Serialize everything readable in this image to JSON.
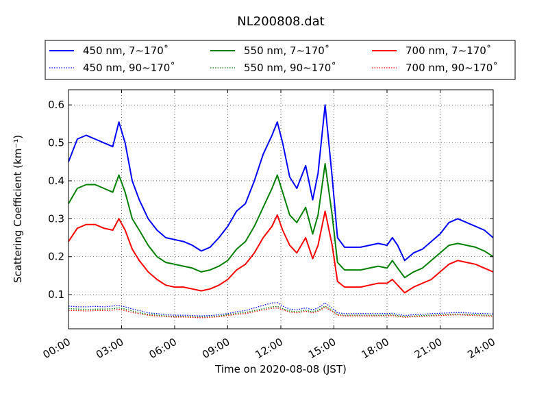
{
  "chart_data": {
    "type": "line",
    "title": "NL200808.dat",
    "xlabel": "Time on 2020-08-08 (JST)",
    "ylabel": "Scattering Coefficient (km⁻¹)",
    "xlim": [
      0,
      24
    ],
    "ylim": [
      0.01,
      0.64
    ],
    "xticks": [
      0,
      3,
      6,
      9,
      12,
      15,
      18,
      21,
      24
    ],
    "xtick_labels": [
      "00:00",
      "03:00",
      "06:00",
      "09:00",
      "12:00",
      "15:00",
      "18:00",
      "21:00",
      "24:00"
    ],
    "yticks": [
      0.1,
      0.2,
      0.3,
      0.4,
      0.5,
      0.6
    ],
    "ytick_labels": [
      "0.1",
      "0.2",
      "0.3",
      "0.4",
      "0.5",
      "0.6"
    ],
    "grid": true,
    "legend_position": "top-outside",
    "x": [
      0,
      0.5,
      1,
      1.5,
      2,
      2.5,
      2.85,
      3.2,
      3.6,
      4,
      4.5,
      5,
      5.5,
      6,
      6.5,
      7,
      7.5,
      8,
      8.5,
      9,
      9.5,
      10,
      10.5,
      11,
      11.5,
      11.8,
      12.1,
      12.5,
      12.9,
      13.4,
      13.8,
      14.1,
      14.5,
      14.9,
      15.2,
      15.6,
      16,
      16.5,
      17,
      17.5,
      18,
      18.3,
      18.6,
      19,
      19.5,
      20,
      20.5,
      21,
      21.5,
      22,
      22.5,
      23,
      23.5,
      24
    ],
    "series": [
      {
        "name": "450 nm, 7∼170˚",
        "color": "#0000ff",
        "style": "solid",
        "values": [
          0.45,
          0.51,
          0.52,
          0.51,
          0.5,
          0.49,
          0.555,
          0.5,
          0.4,
          0.35,
          0.3,
          0.27,
          0.25,
          0.245,
          0.24,
          0.23,
          0.215,
          0.225,
          0.25,
          0.28,
          0.32,
          0.34,
          0.4,
          0.47,
          0.52,
          0.555,
          0.5,
          0.41,
          0.38,
          0.44,
          0.35,
          0.42,
          0.6,
          0.41,
          0.25,
          0.225,
          0.225,
          0.225,
          0.23,
          0.235,
          0.23,
          0.25,
          0.23,
          0.19,
          0.21,
          0.22,
          0.24,
          0.26,
          0.29,
          0.3,
          0.29,
          0.28,
          0.27,
          0.25
        ]
      },
      {
        "name": "550 nm, 7∼170˚",
        "color": "#008000",
        "style": "solid",
        "values": [
          0.34,
          0.38,
          0.39,
          0.39,
          0.38,
          0.37,
          0.415,
          0.37,
          0.3,
          0.27,
          0.23,
          0.2,
          0.185,
          0.18,
          0.175,
          0.17,
          0.16,
          0.165,
          0.175,
          0.19,
          0.22,
          0.24,
          0.28,
          0.33,
          0.38,
          0.415,
          0.37,
          0.31,
          0.29,
          0.33,
          0.26,
          0.31,
          0.445,
          0.31,
          0.185,
          0.165,
          0.165,
          0.165,
          0.17,
          0.175,
          0.17,
          0.19,
          0.17,
          0.145,
          0.16,
          0.17,
          0.19,
          0.21,
          0.23,
          0.235,
          0.23,
          0.225,
          0.215,
          0.2
        ]
      },
      {
        "name": "700 nm, 7∼170˚",
        "color": "#ff0000",
        "style": "solid",
        "values": [
          0.24,
          0.275,
          0.285,
          0.285,
          0.275,
          0.27,
          0.3,
          0.27,
          0.22,
          0.19,
          0.16,
          0.14,
          0.125,
          0.12,
          0.12,
          0.115,
          0.11,
          0.115,
          0.125,
          0.14,
          0.165,
          0.18,
          0.21,
          0.25,
          0.28,
          0.31,
          0.27,
          0.23,
          0.21,
          0.25,
          0.195,
          0.23,
          0.32,
          0.23,
          0.135,
          0.12,
          0.12,
          0.12,
          0.125,
          0.13,
          0.13,
          0.14,
          0.125,
          0.105,
          0.12,
          0.13,
          0.14,
          0.16,
          0.18,
          0.19,
          0.185,
          0.18,
          0.17,
          0.16
        ]
      },
      {
        "name": "450 nm, 90∼170˚",
        "color": "#0000ff",
        "style": "dotted",
        "values": [
          0.07,
          0.068,
          0.068,
          0.069,
          0.068,
          0.07,
          0.072,
          0.068,
          0.062,
          0.058,
          0.052,
          0.05,
          0.047,
          0.046,
          0.046,
          0.045,
          0.044,
          0.045,
          0.047,
          0.05,
          0.055,
          0.058,
          0.065,
          0.072,
          0.078,
          0.079,
          0.07,
          0.062,
          0.06,
          0.065,
          0.06,
          0.065,
          0.078,
          0.065,
          0.052,
          0.05,
          0.05,
          0.05,
          0.05,
          0.05,
          0.05,
          0.051,
          0.048,
          0.045,
          0.047,
          0.048,
          0.05,
          0.051,
          0.052,
          0.053,
          0.052,
          0.051,
          0.05,
          0.049
        ]
      },
      {
        "name": "550 nm, 90∼170˚",
        "color": "#008000",
        "style": "dotted",
        "values": [
          0.063,
          0.062,
          0.061,
          0.062,
          0.062,
          0.063,
          0.065,
          0.062,
          0.057,
          0.053,
          0.048,
          0.046,
          0.044,
          0.043,
          0.043,
          0.042,
          0.041,
          0.042,
          0.044,
          0.047,
          0.051,
          0.053,
          0.058,
          0.063,
          0.068,
          0.069,
          0.063,
          0.057,
          0.055,
          0.059,
          0.055,
          0.059,
          0.07,
          0.059,
          0.048,
          0.046,
          0.046,
          0.046,
          0.046,
          0.046,
          0.046,
          0.047,
          0.045,
          0.042,
          0.044,
          0.045,
          0.046,
          0.047,
          0.048,
          0.049,
          0.048,
          0.047,
          0.046,
          0.045
        ]
      },
      {
        "name": "700 nm, 90∼170˚",
        "color": "#ff0000",
        "style": "dotted",
        "values": [
          0.058,
          0.058,
          0.057,
          0.058,
          0.058,
          0.059,
          0.061,
          0.058,
          0.053,
          0.05,
          0.046,
          0.044,
          0.042,
          0.041,
          0.041,
          0.04,
          0.039,
          0.04,
          0.042,
          0.045,
          0.048,
          0.05,
          0.055,
          0.06,
          0.064,
          0.065,
          0.06,
          0.054,
          0.052,
          0.056,
          0.052,
          0.056,
          0.067,
          0.056,
          0.046,
          0.044,
          0.044,
          0.044,
          0.044,
          0.044,
          0.044,
          0.045,
          0.043,
          0.04,
          0.042,
          0.043,
          0.044,
          0.045,
          0.046,
          0.047,
          0.046,
          0.045,
          0.044,
          0.043
        ]
      }
    ]
  }
}
